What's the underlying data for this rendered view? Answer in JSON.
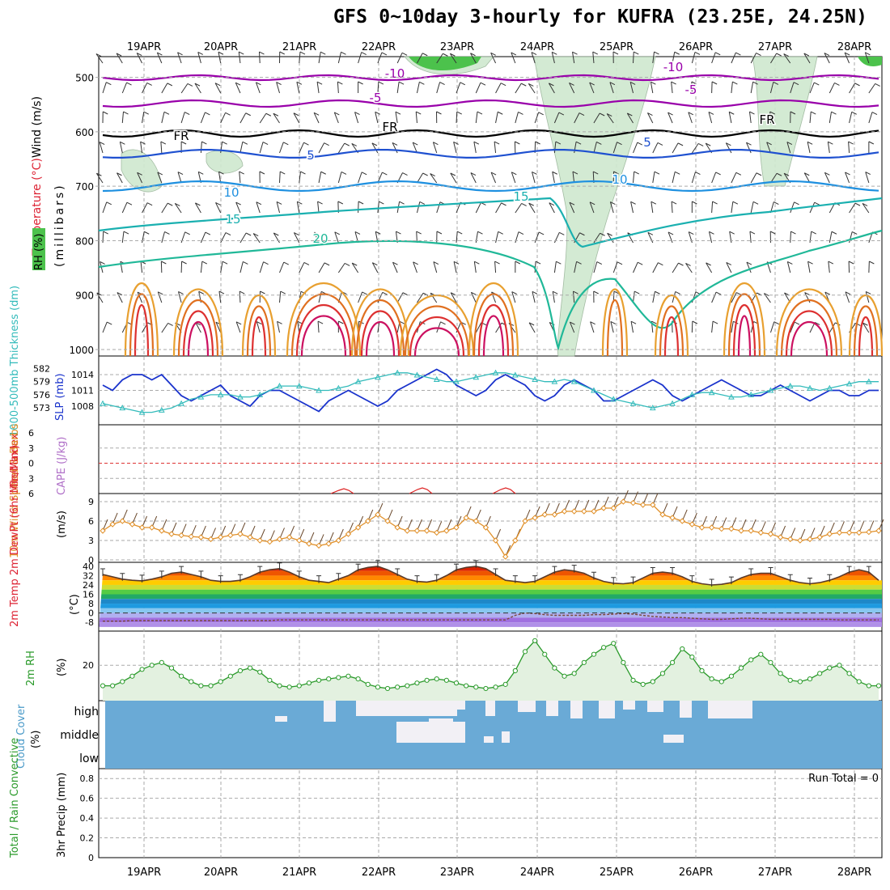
{
  "title": "GFS 0~10day 3-hourly for KUFRA (23.25E, 24.25N)",
  "chart_data": {
    "type": "meteogram",
    "dates": [
      "19APR",
      "20APR",
      "21APR",
      "22APR",
      "23APR",
      "24APR",
      "25APR",
      "26APR",
      "27APR",
      "28APR"
    ],
    "colors": {
      "grid": "#aaaaaa",
      "rh_green": "#4cc24c",
      "temp_purple": "#9900aa",
      "temp_blue": "#1e50d0",
      "slp": "#1a33cc",
      "thickness": "#33bbbb",
      "wind10m": "#e0902a",
      "rh2m": "#2a9a2a",
      "cloud": "#6aaad6",
      "lifted_index": "#dd2222"
    },
    "panels": {
      "upper": {
        "ylabel_parts": [
          "Wind (m/s)",
          "Temperature (°C)",
          "RH (%)"
        ],
        "axis_label": "(millibars)",
        "yticks": [
          500,
          600,
          700,
          800,
          900,
          1000
        ],
        "contour_labels": [
          {
            "text": "-10",
            "x": 488,
            "y": 96,
            "color": "#9900aa"
          },
          {
            "text": "-10",
            "x": 832,
            "y": 88,
            "color": "#9900aa"
          },
          {
            "text": "-5",
            "x": 464,
            "y": 126,
            "color": "#9900aa"
          },
          {
            "text": "-5",
            "x": 854,
            "y": 116,
            "color": "#9900aa"
          },
          {
            "text": "FR",
            "x": 224,
            "y": 173,
            "color": "#000000"
          },
          {
            "text": "FR",
            "x": 482,
            "y": 162,
            "color": "#000000"
          },
          {
            "text": "FR",
            "x": 948,
            "y": 153,
            "color": "#000000"
          },
          {
            "text": "5",
            "x": 384,
            "y": 197,
            "color": "#1e50d0"
          },
          {
            "text": "5",
            "x": 800,
            "y": 181,
            "color": "#1e50d0"
          },
          {
            "text": "10",
            "x": 286,
            "y": 243,
            "color": "#1e90e0"
          },
          {
            "text": "10",
            "x": 766,
            "y": 227,
            "color": "#1e90e0"
          },
          {
            "text": "15",
            "x": 288,
            "y": 276,
            "color": "#1ab0b0"
          },
          {
            "text": "15",
            "x": 644,
            "y": 248,
            "color": "#1ab0b0"
          },
          {
            "text": "20",
            "x": 396,
            "y": 300,
            "color": "#20b898"
          }
        ]
      },
      "slp": {
        "ylabel": "1000-500mb Thickness (dm)",
        "ylabel2": "SLP (mb)",
        "thickness_ticks": [
          582,
          579,
          576,
          573
        ],
        "slp_ticks": [
          1014,
          1011,
          1008
        ]
      },
      "cape": {
        "ylabel": "Lifted Index",
        "ylabel2": "CAPE (J/kg)",
        "yticks": [
          "6",
          "3",
          "0",
          "3",
          "6"
        ]
      },
      "wind10m": {
        "ylabel": "10m Wind Speed & Barbs",
        "unit": "(m/s)",
        "yticks": [
          9,
          6,
          3,
          0
        ]
      },
      "temp2m": {
        "ylabel": "2m Temp 2m DewPt (6hr Min/Max)",
        "unit": "(°C)",
        "yticks": [
          40,
          32,
          24,
          16,
          8,
          0,
          -8
        ]
      },
      "rh2m": {
        "ylabel": "2m RH",
        "unit": "(%)",
        "yticks": [
          20
        ]
      },
      "cloud": {
        "ylabel": "Cloud Cover",
        "unit": "(%)",
        "levels": [
          "high",
          "middle",
          "low"
        ]
      },
      "precip": {
        "ylabel": "Total / Rain Convective",
        "ylabel2": "3hr Precip (mm)",
        "yticks": [
          "0.8",
          "0.6",
          "0.4",
          "0.2",
          "0"
        ],
        "run_total": "Run Total = 0"
      }
    },
    "series": {
      "slp": [
        1012,
        1011,
        1013,
        1014,
        1014,
        1013,
        1014,
        1012,
        1010,
        1009,
        1010,
        1011,
        1012,
        1010,
        1009,
        1008,
        1010,
        1011,
        1011,
        1010,
        1009,
        1008,
        1007,
        1009,
        1010,
        1011,
        1010,
        1009,
        1008,
        1009,
        1011,
        1012,
        1013,
        1014,
        1015,
        1014,
        1012,
        1011,
        1010,
        1011,
        1013,
        1014,
        1013,
        1012,
        1010,
        1009,
        1010,
        1012,
        1013,
        1012,
        1011,
        1009,
        1009,
        1010,
        1011,
        1012,
        1013,
        1012,
        1010,
        1009,
        1010,
        1011,
        1012,
        1013,
        1012,
        1011,
        1010,
        1010,
        1011,
        1012,
        1011,
        1010,
        1009,
        1010,
        1011,
        1011,
        1010,
        1010,
        1011,
        1011
      ],
      "thickness": [
        574,
        573.5,
        573,
        572.5,
        572,
        572,
        572.5,
        573,
        574,
        575,
        575.5,
        576,
        576,
        576,
        575.5,
        575.5,
        576,
        577,
        578,
        578,
        578,
        577.5,
        577,
        577,
        577.5,
        578,
        579,
        579.5,
        580,
        580.5,
        581,
        581,
        580.5,
        580,
        579.5,
        579,
        579,
        579.5,
        580,
        580.5,
        581,
        581,
        580.5,
        580,
        579.5,
        579,
        579,
        579.5,
        579,
        578,
        577,
        576,
        575,
        574.5,
        574,
        573.5,
        573,
        573.5,
        574,
        575,
        576,
        576.5,
        576.5,
        576,
        575.5,
        575.5,
        576,
        576.5,
        577,
        577.5,
        578,
        578,
        577.5,
        577,
        577.5,
        578,
        578.5,
        579,
        579,
        579
      ],
      "wind10m": [
        4.5,
        5.5,
        6,
        5.5,
        5,
        5,
        4.5,
        4,
        3.8,
        3.6,
        3.5,
        3.2,
        3.5,
        3.8,
        4,
        3.5,
        3,
        2.8,
        3.2,
        3.5,
        3,
        2.5,
        2.2,
        2.5,
        3,
        4,
        5,
        6,
        7,
        6,
        5,
        4.5,
        4.5,
        4.5,
        4.2,
        4.5,
        5,
        6.5,
        6,
        5,
        3,
        0.5,
        3,
        6,
        6.5,
        7,
        7,
        7.5,
        7.5,
        7.5,
        7.5,
        8,
        8,
        9,
        8.8,
        8.5,
        8.5,
        7,
        6.5,
        6,
        5.5,
        5,
        5,
        4.8,
        4.8,
        4.5,
        4.5,
        4.2,
        4,
        3.5,
        3.2,
        3,
        3.2,
        3.5,
        4,
        4.2,
        4.2,
        4.2,
        4.3,
        4.5
      ],
      "temp2m": [
        33,
        31,
        29,
        28,
        27.5,
        29,
        31,
        34,
        35,
        33,
        31,
        28,
        27,
        27,
        28,
        31,
        35,
        37,
        38,
        35,
        31,
        28,
        27,
        26,
        29,
        32,
        37,
        39,
        40,
        37,
        33,
        29,
        27,
        26.5,
        28,
        32,
        37,
        39,
        40,
        38,
        33,
        28,
        27,
        26,
        27,
        31,
        35,
        37,
        36,
        34,
        30,
        27,
        25.5,
        25,
        26,
        30,
        34,
        35,
        34,
        31,
        27,
        25,
        24,
        24.5,
        26,
        30,
        33,
        34,
        34,
        31,
        28,
        26,
        25,
        26,
        28,
        31,
        35,
        37,
        35,
        28
      ],
      "dewpt2m": [
        -7,
        -7,
        -7,
        -6.5,
        -6.5,
        -6.5,
        -6.5,
        -6.5,
        -6.5,
        -6.5,
        -6.5,
        -6.5,
        -6.5,
        -6.5,
        -6.5,
        -6.5,
        -6.5,
        -6.5,
        -6,
        -6,
        -6,
        -6,
        -6,
        -6,
        -6,
        -6,
        -6,
        -6,
        -6,
        -6,
        -6,
        -6,
        -6,
        -6,
        -6,
        -6,
        -6,
        -6,
        -6,
        -6,
        -6,
        -6,
        -2,
        0,
        -0.5,
        -1.5,
        -2,
        -2,
        -2,
        -2,
        -1.5,
        -1.5,
        -1,
        -0.5,
        -1,
        -2,
        -3,
        -3.5,
        -4,
        -4,
        -4.5,
        -5,
        -5.5,
        -5.5,
        -5,
        -4.5,
        -4.5,
        -5,
        -5.5,
        -5.5,
        -5.5,
        -5.5,
        -5.5,
        -5.5,
        -5.5,
        -6,
        -6,
        -6,
        -6,
        -6
      ],
      "rh2m": [
        5,
        5,
        8,
        12,
        17,
        20,
        22,
        18,
        12,
        8,
        5,
        5,
        8,
        12,
        16,
        18,
        15,
        9,
        5,
        4,
        5,
        7,
        9,
        10,
        11,
        12,
        10,
        6,
        4,
        3,
        4,
        5,
        7,
        9,
        10,
        9,
        7,
        5,
        4,
        3,
        4,
        6,
        16,
        30,
        38,
        28,
        18,
        12,
        14,
        22,
        28,
        33,
        36,
        22,
        9,
        6,
        8,
        14,
        22,
        32,
        26,
        16,
        10,
        8,
        12,
        18,
        24,
        28,
        22,
        14,
        9,
        8,
        10,
        14,
        18,
        20,
        14,
        8,
        5,
        5
      ]
    }
  }
}
